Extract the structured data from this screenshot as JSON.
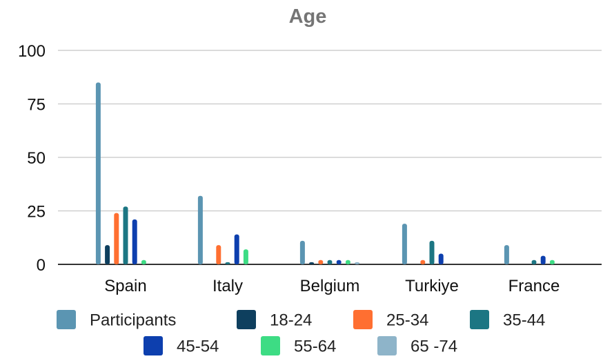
{
  "chart_data": {
    "type": "bar",
    "title": "Age",
    "xlabel": "",
    "ylabel": "",
    "ylim": [
      0,
      100
    ],
    "y_ticks": [
      "0",
      "25",
      "50",
      "75",
      "100"
    ],
    "grid": true,
    "legend_position": "bottom",
    "categories": [
      "Spain",
      "Italy",
      "Belgium",
      "Turkiye",
      "France"
    ],
    "series": [
      {
        "name": "Participants",
        "color": "#5b95b2",
        "values": [
          85,
          32,
          11,
          19,
          9
        ]
      },
      {
        "name": "18-24",
        "color": "#0e3f5e",
        "values": [
          9,
          0,
          1,
          0,
          0
        ]
      },
      {
        "name": "25-34",
        "color": "#ff6f31",
        "values": [
          24,
          9,
          2,
          2,
          0
        ]
      },
      {
        "name": "35-44",
        "color": "#1c7683",
        "values": [
          27,
          1,
          2,
          11,
          2
        ]
      },
      {
        "name": "45-54",
        "color": "#0d3fae",
        "values": [
          21,
          14,
          2,
          5,
          4
        ]
      },
      {
        "name": "55-64",
        "color": "#3ddc84",
        "values": [
          2,
          7,
          2,
          0,
          2
        ]
      },
      {
        "name": "65 -74",
        "color": "#8eb4c9",
        "values": [
          0,
          0,
          1,
          0,
          0
        ]
      }
    ]
  }
}
